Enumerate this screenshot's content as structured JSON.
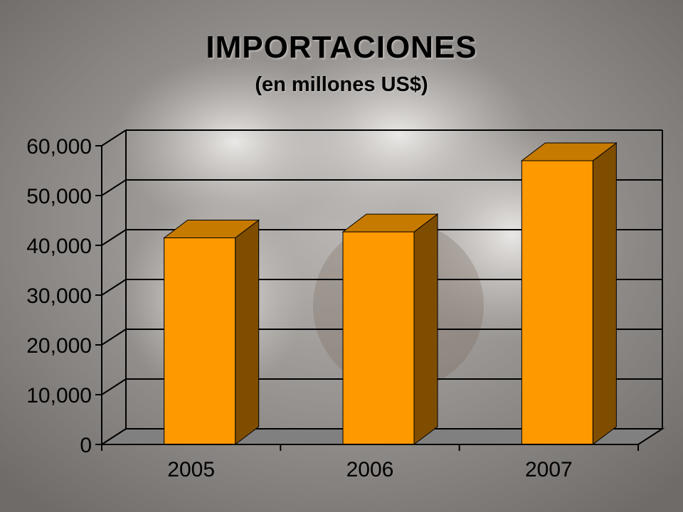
{
  "slide": {
    "title": "IMPORTACIONES",
    "subtitle": "(en millones US$)"
  },
  "colors": {
    "bar_front": "#ff9900",
    "bar_top": "#c67a00",
    "bar_side": "#7f4d00",
    "floor": "#808080",
    "background": "#8a8784"
  },
  "chart_data": {
    "type": "bar",
    "style": "3d-column",
    "title": "IMPORTACIONES",
    "subtitle": "(en millones US$)",
    "categories": [
      "2005",
      "2006",
      "2007"
    ],
    "values": [
      41500,
      42700,
      57000
    ],
    "ylim": [
      0,
      60000
    ],
    "yticks": [
      "0",
      "10,000",
      "20,000",
      "30,000",
      "40,000",
      "50,000",
      "60,000"
    ],
    "grid": true,
    "legend": "none"
  }
}
